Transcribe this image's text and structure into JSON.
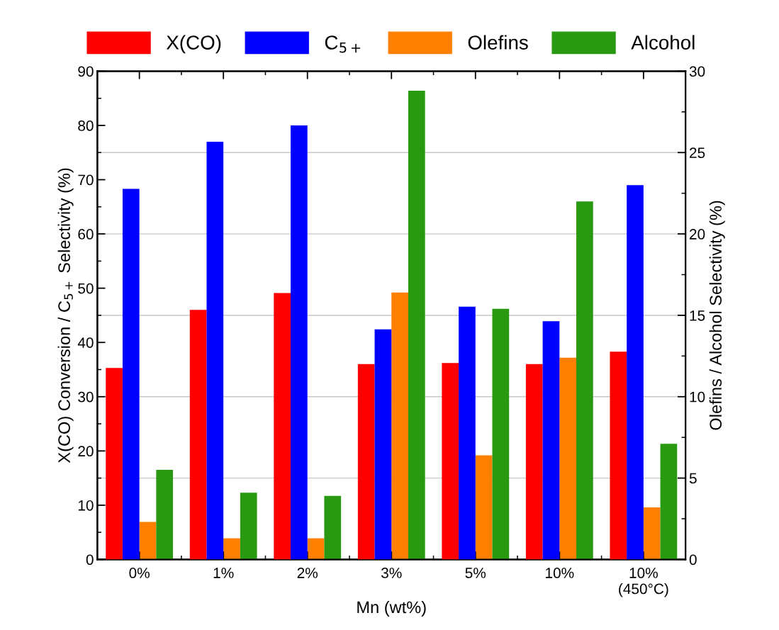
{
  "chart_data": {
    "type": "bar",
    "xlabel": "Mn (wt%)",
    "ylabel": "X(CO) Conversion / C$_{5+}$ Selectivity (%)",
    "y2label": "Olefins / Alcohol Selectivity (%)",
    "categories": [
      "0%",
      "1%",
      "2%",
      "3%",
      "5%",
      "10%",
      "10%\n(450°C)"
    ],
    "series": [
      {
        "name": "X(CO)",
        "color": "#ff0000",
        "values": [
          35.3,
          46,
          49.1,
          36,
          36.2,
          36,
          38.3
        ]
      },
      {
        "name": "C$_{5+}$",
        "color": "#0000ff",
        "values": [
          68.3,
          77,
          80,
          42.4,
          46.6,
          43.9,
          69
        ]
      },
      {
        "name": "Olefins",
        "color": "#ff8000",
        "axis": "y2",
        "values": [
          2.3,
          1.3,
          1.3,
          16.4,
          6.4,
          12.4,
          3.2
        ]
      },
      {
        "name": "Alcohol",
        "color": "#299912",
        "axis": "y2",
        "values": [
          5.5,
          4.1,
          3.9,
          28.8,
          15.4,
          22.0,
          7.1
        ]
      }
    ],
    "ylim": [
      0,
      90
    ],
    "yticks": [
      0,
      10,
      20,
      30,
      40,
      50,
      60,
      70,
      80,
      90
    ],
    "y2lim": [
      0,
      30
    ],
    "y2ticks": [
      0,
      5,
      10,
      15,
      20,
      25,
      30
    ],
    "grid": "y",
    "legend": "top"
  }
}
